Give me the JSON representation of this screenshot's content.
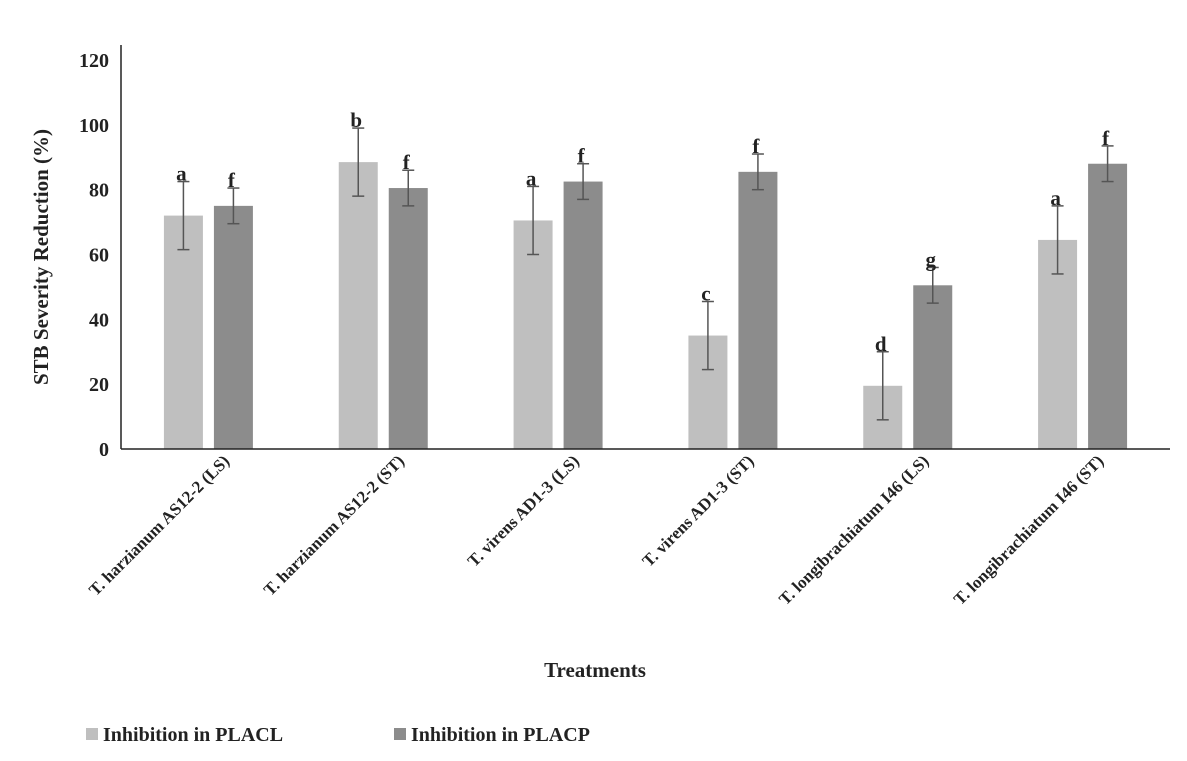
{
  "chart_data": {
    "type": "bar",
    "title": "",
    "xlabel": "Treatments",
    "ylabel": "STB Severity Reduction (%)",
    "ylim": [
      0,
      120
    ],
    "yticks": [
      0,
      20,
      40,
      60,
      80,
      100,
      120
    ],
    "grid": false,
    "legend_position": "bottom-left",
    "categories": [
      "T. harzianum AS12-2 (LS)",
      "T. harzianum AS12-2 (ST)",
      "T. virens AD1-3 (LS)",
      "T. virens AD1-3 (ST)",
      "T. longibrachiatum I46 (LS)",
      "T. longibrachiatum I46 (ST)"
    ],
    "series": [
      {
        "name": "Inhibition in PLACL",
        "color": "#bfbfbf",
        "values": [
          72,
          88.5,
          70.5,
          35,
          19.5,
          64.5
        ],
        "errors": [
          10.5,
          10.5,
          10.5,
          10.5,
          10.5,
          10.5
        ],
        "letters": [
          "a",
          "b",
          "a",
          "c",
          "d",
          "a"
        ]
      },
      {
        "name": "Inhibition in PLACP",
        "color": "#8c8c8c",
        "values": [
          75,
          80.5,
          82.5,
          85.5,
          50.5,
          88
        ],
        "errors": [
          5.5,
          5.5,
          5.5,
          5.5,
          5.5,
          5.5
        ],
        "letters": [
          "f",
          "f",
          "f",
          "f",
          "g",
          "f"
        ]
      }
    ]
  }
}
